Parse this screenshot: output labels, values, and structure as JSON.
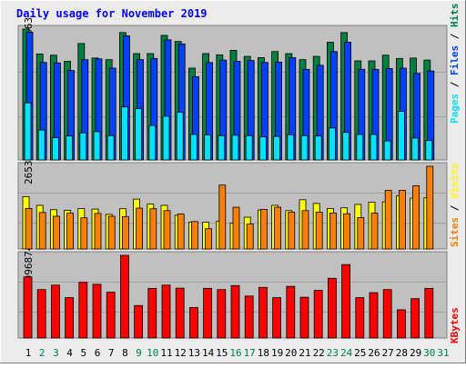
{
  "title": "Daily usage for November 2019",
  "colors": {
    "background": "#ececec",
    "panel": "#c0c0c0",
    "title": "#0000ff",
    "hits": "#008040",
    "files": "#0040ff",
    "pages": "#00e0ff",
    "visits": "#ffff00",
    "sites": "#ff8000",
    "kbytes": "#ff0000",
    "weekday_label": "#000000",
    "weekend_label": "#008040"
  },
  "chart_data": [
    {
      "type": "bar",
      "panel": "hits-files-pages",
      "ymax_label": "32363",
      "ylim": [
        0,
        32363
      ],
      "legend": [
        "Pages",
        "Files",
        "Hits"
      ],
      "legend_separator": " / ",
      "categories": [
        "1",
        "2",
        "3",
        "4",
        "5",
        "6",
        "7",
        "8",
        "9",
        "10",
        "11",
        "12",
        "13",
        "14",
        "15",
        "16",
        "17",
        "18",
        "19",
        "20",
        "21",
        "22",
        "23",
        "24",
        "25",
        "26",
        "27",
        "28",
        "29",
        "30",
        "31"
      ],
      "series": [
        {
          "name": "Hits",
          "values": [
            32363,
            26200,
            25900,
            24400,
            28800,
            25200,
            24800,
            31500,
            26300,
            26300,
            30800,
            29300,
            22700,
            26300,
            26000,
            27100,
            25600,
            25300,
            26800,
            26300,
            24800,
            25600,
            29100,
            31500,
            24500,
            24500,
            25900,
            25100,
            25200,
            24700,
            null
          ]
        },
        {
          "name": "Files",
          "values": [
            31600,
            24100,
            24000,
            22100,
            24800,
            25000,
            22700,
            30700,
            24800,
            25100,
            29700,
            28700,
            20600,
            24100,
            24700,
            24400,
            24600,
            24100,
            24200,
            25300,
            22400,
            23400,
            26800,
            29100,
            22400,
            22400,
            22600,
            22700,
            21400,
            22000,
            null
          ]
        },
        {
          "name": "Pages",
          "values": [
            14100,
            7400,
            5500,
            5900,
            6700,
            7000,
            6000,
            13100,
            12700,
            8500,
            10800,
            11800,
            6300,
            6200,
            6000,
            6100,
            6000,
            5700,
            5800,
            6200,
            6000,
            5900,
            7900,
            6800,
            6300,
            6300,
            4700,
            12000,
            5400,
            4800,
            null
          ]
        }
      ]
    },
    {
      "type": "bar",
      "panel": "visits-sites",
      "ymax_label": "2653",
      "ylim": [
        0,
        2653
      ],
      "legend": [
        "Sites",
        "Visits"
      ],
      "legend_separator": " / ",
      "categories": [
        "1",
        "2",
        "3",
        "4",
        "5",
        "6",
        "7",
        "8",
        "9",
        "10",
        "11",
        "12",
        "13",
        "14",
        "15",
        "16",
        "17",
        "18",
        "19",
        "20",
        "21",
        "22",
        "23",
        "24",
        "25",
        "26",
        "27",
        "28",
        "29",
        "30",
        "31"
      ],
      "series": [
        {
          "name": "Visits",
          "values": [
            1680,
            1400,
            1260,
            1240,
            1300,
            1280,
            1110,
            1290,
            1600,
            1440,
            1400,
            1080,
            860,
            860,
            890,
            830,
            1020,
            1250,
            1400,
            1230,
            1580,
            1460,
            1300,
            1320,
            1430,
            1500,
            1510,
            1710,
            1630,
            1640,
            null
          ]
        },
        {
          "name": "Sites",
          "values": [
            1300,
            1170,
            1050,
            1150,
            1000,
            1140,
            1050,
            1040,
            1310,
            1290,
            1230,
            1120,
            880,
            650,
            2050,
            1340,
            800,
            1270,
            1340,
            1180,
            1230,
            1180,
            1150,
            1130,
            1010,
            1150,
            1880,
            1880,
            2030,
            2653,
            null
          ]
        }
      ]
    },
    {
      "type": "bar",
      "panel": "kbytes",
      "ymax_label": "4096874",
      "ylim": [
        0,
        4096874
      ],
      "legend": [
        "KBytes"
      ],
      "categories": [
        "1",
        "2",
        "3",
        "4",
        "5",
        "6",
        "7",
        "8",
        "9",
        "10",
        "11",
        "12",
        "13",
        "14",
        "15",
        "16",
        "17",
        "18",
        "19",
        "20",
        "21",
        "22",
        "23",
        "24",
        "25",
        "26",
        "27",
        "28",
        "29",
        "30",
        "31"
      ],
      "series": [
        {
          "name": "KBytes",
          "values": [
            3030,
            2400,
            2620,
            2000,
            2760,
            2660,
            2270,
            4096.874,
            1610,
            2460,
            2620,
            2470,
            1510,
            2460,
            2400,
            2600,
            2080,
            2510,
            2000,
            2560,
            2020,
            2360,
            2960,
            3640,
            2000,
            2250,
            2400,
            1400,
            1950,
            2460,
            null
          ]
        }
      ]
    }
  ],
  "day_labels": [
    {
      "text": "1",
      "weekend": false
    },
    {
      "text": "2",
      "weekend": true
    },
    {
      "text": "3",
      "weekend": true
    },
    {
      "text": "4",
      "weekend": false
    },
    {
      "text": "5",
      "weekend": false
    },
    {
      "text": "6",
      "weekend": false
    },
    {
      "text": "7",
      "weekend": false
    },
    {
      "text": "8",
      "weekend": false
    },
    {
      "text": "9",
      "weekend": true
    },
    {
      "text": "10",
      "weekend": true
    },
    {
      "text": "11",
      "weekend": false
    },
    {
      "text": "12",
      "weekend": false
    },
    {
      "text": "13",
      "weekend": false
    },
    {
      "text": "14",
      "weekend": false
    },
    {
      "text": "15",
      "weekend": false
    },
    {
      "text": "16",
      "weekend": true
    },
    {
      "text": "17",
      "weekend": true
    },
    {
      "text": "18",
      "weekend": false
    },
    {
      "text": "19",
      "weekend": false
    },
    {
      "text": "20",
      "weekend": false
    },
    {
      "text": "21",
      "weekend": false
    },
    {
      "text": "22",
      "weekend": false
    },
    {
      "text": "23",
      "weekend": true
    },
    {
      "text": "24",
      "weekend": true
    },
    {
      "text": "25",
      "weekend": false
    },
    {
      "text": "26",
      "weekend": false
    },
    {
      "text": "27",
      "weekend": false
    },
    {
      "text": "28",
      "weekend": false
    },
    {
      "text": "29",
      "weekend": false
    },
    {
      "text": "30",
      "weekend": true
    },
    {
      "text": "31",
      "weekend": true
    }
  ]
}
